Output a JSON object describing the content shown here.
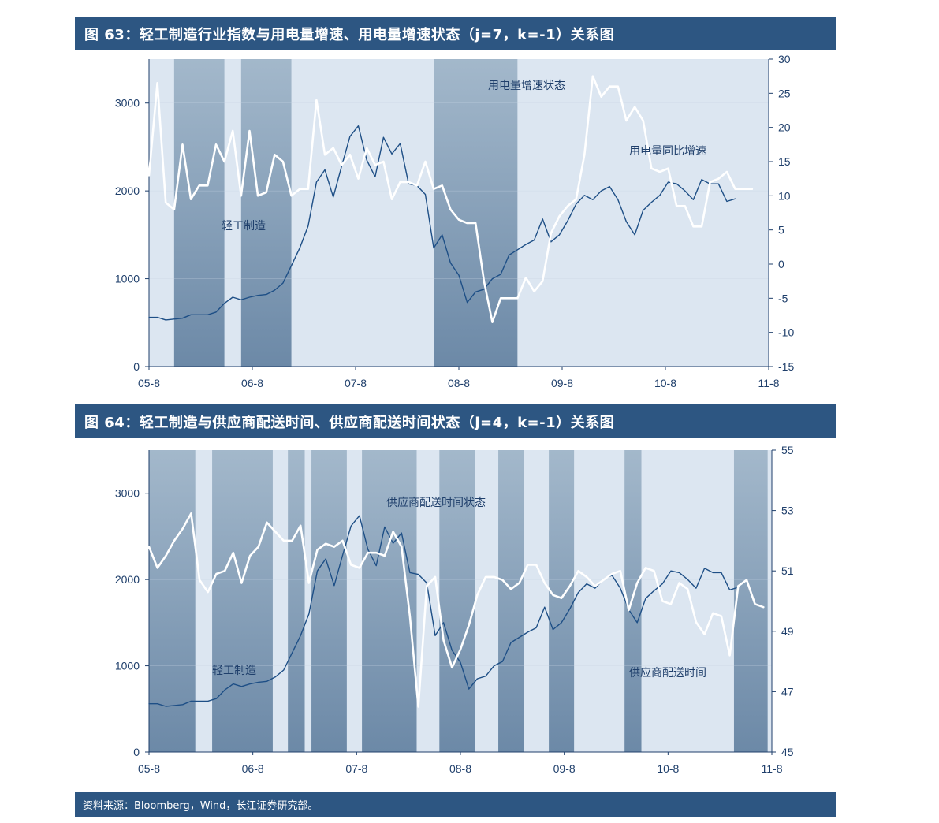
{
  "title1": "图 63：轻工制造行业指数与用电量增速、用电量增速状态（j=7，k=-1）关系图",
  "title2": "图 64：轻工制造与供应商配送时间、供应商配送时间状态（j=4，k=-1）关系图",
  "footer": "资料来源：Bloomberg，Wind，长江证券研究部。",
  "colors": {
    "header": "#2d5682",
    "light_band": "#dce6f1",
    "dark_band_top": "#a3b8cb",
    "dark_band_bottom": "#6c89a7",
    "index_line": "#1e4f86",
    "white_line": "#ffffff",
    "axis": "#1f3f6b"
  },
  "chart_data": [
    {
      "type": "line",
      "title": "图 63：轻工制造行业指数与用电量增速、用电量增速状态（j=7，k=-1）关系图",
      "x_tick_labels": [
        "05-8",
        "06-8",
        "07-8",
        "08-8",
        "09-8",
        "10-8",
        "11-8"
      ],
      "x_range": [
        0,
        74
      ],
      "y_left": {
        "ticks": [
          0,
          1000,
          2000,
          3000
        ],
        "range": [
          0,
          3500
        ]
      },
      "y_right": {
        "ticks": [
          -15,
          -10,
          -5,
          0,
          5,
          10,
          15,
          20,
          25,
          30
        ],
        "range": [
          -15,
          30
        ]
      },
      "annotations": [
        "用电量增速状态",
        "用电量同比增速",
        "轻工制造"
      ],
      "state_bands": [
        [
          3,
          9
        ],
        [
          11,
          17
        ],
        [
          34,
          44
        ]
      ],
      "series": [
        {
          "axis": "left",
          "color": "#1e4f86",
          "values": [
            560,
            560,
            530,
            540,
            550,
            590,
            590,
            590,
            620,
            720,
            790,
            760,
            790,
            810,
            820,
            870,
            950,
            1150,
            1350,
            1600,
            2100,
            2240,
            1930,
            2280,
            2620,
            2740,
            2350,
            2160,
            2610,
            2420,
            2540,
            2080,
            2060,
            1960,
            1350,
            1500,
            1180,
            1040,
            730,
            850,
            880,
            1000,
            1050,
            1270,
            1330,
            1390,
            1440,
            1680,
            1420,
            1500,
            1660,
            1850,
            1950,
            1900,
            2000,
            2050,
            1900,
            1650,
            1500,
            1780,
            1870,
            1950,
            2100,
            2080,
            2000,
            1900,
            2130,
            2080,
            2080,
            1880,
            1910
          ]
        },
        {
          "axis": "right",
          "color": "#ffffff",
          "values": [
            13,
            26.5,
            9,
            8,
            17.5,
            9.5,
            11.5,
            11.5,
            17.5,
            15,
            19.5,
            10,
            19.5,
            10,
            10.5,
            16,
            15,
            10,
            11,
            11,
            24,
            16,
            17,
            14.5,
            16,
            12.5,
            17,
            14.5,
            15,
            9.5,
            12,
            12,
            11.5,
            15,
            11,
            11.5,
            8,
            6.5,
            6,
            6,
            -2.5,
            -8.5,
            -5,
            -5,
            -5,
            -2,
            -4,
            -2.5,
            4.5,
            7,
            8.5,
            9.5,
            16,
            27.5,
            24.5,
            26,
            26,
            21,
            23,
            21,
            14,
            13.5,
            14,
            8.5,
            8.5,
            5.5,
            5.5,
            12,
            12.5,
            13.5,
            11,
            11,
            11
          ]
        }
      ]
    },
    {
      "type": "line",
      "title": "图 64：轻工制造与供应商配送时间、供应商配送时间状态（j=4，k=-1）关系图",
      "x_tick_labels": [
        "05-8",
        "06-8",
        "07-8",
        "08-8",
        "09-8",
        "10-8",
        "11-8"
      ],
      "x_range": [
        0,
        74
      ],
      "y_left": {
        "ticks": [
          0,
          1000,
          2000,
          3000
        ],
        "range": [
          0,
          3500
        ]
      },
      "y_right": {
        "ticks": [
          45,
          47,
          49,
          51,
          53,
          55
        ],
        "range": [
          45,
          55
        ]
      },
      "annotations": [
        "供应商配送时间状态",
        "轻工制造",
        "供应商配送时间"
      ],
      "state_bands": [
        [
          0,
          5.5
        ],
        [
          7.5,
          14.7
        ],
        [
          16.5,
          18.5
        ],
        [
          19.3,
          23.5
        ],
        [
          25.3,
          31.8
        ],
        [
          34.5,
          38.7
        ],
        [
          41.5,
          44.5
        ],
        [
          47.5,
          50.5
        ],
        [
          56.5,
          58.5
        ],
        [
          69.5,
          73.5
        ]
      ],
      "series": [
        {
          "axis": "left",
          "color": "#1e4f86",
          "values": [
            560,
            560,
            530,
            540,
            550,
            590,
            590,
            590,
            620,
            720,
            790,
            760,
            790,
            810,
            820,
            870,
            950,
            1150,
            1350,
            1600,
            2100,
            2240,
            1930,
            2280,
            2620,
            2740,
            2350,
            2160,
            2610,
            2420,
            2540,
            2080,
            2060,
            1960,
            1350,
            1500,
            1180,
            1040,
            730,
            850,
            880,
            1000,
            1050,
            1270,
            1330,
            1390,
            1440,
            1680,
            1420,
            1500,
            1660,
            1850,
            1950,
            1900,
            2000,
            2050,
            1900,
            1650,
            1500,
            1780,
            1870,
            1950,
            2100,
            2080,
            2000,
            1900,
            2130,
            2080,
            2080,
            1880,
            1910
          ]
        },
        {
          "axis": "right",
          "color": "#ffffff",
          "values": [
            51.8,
            51.1,
            51.5,
            52,
            52.4,
            52.9,
            50.7,
            50.3,
            50.9,
            51,
            51.6,
            50.6,
            51.5,
            51.8,
            52.6,
            52.3,
            52,
            52,
            52.5,
            50.6,
            51.7,
            51.9,
            51.8,
            52,
            51.2,
            51.1,
            51.6,
            51.6,
            51.5,
            52.3,
            51.8,
            49.5,
            46.5,
            50.5,
            50.8,
            48.7,
            47.8,
            48.4,
            49.2,
            50.2,
            50.8,
            50.8,
            50.7,
            50.4,
            50.6,
            51.2,
            51.2,
            50.6,
            50.2,
            50.1,
            50.5,
            51,
            50.8,
            50.5,
            50.7,
            50.9,
            51,
            49.7,
            50.6,
            51.1,
            51,
            50,
            49.9,
            50.6,
            50.4,
            49.3,
            48.9,
            49.6,
            49.5,
            48.2,
            50.5,
            50.7,
            49.9,
            49.8
          ]
        }
      ]
    }
  ]
}
